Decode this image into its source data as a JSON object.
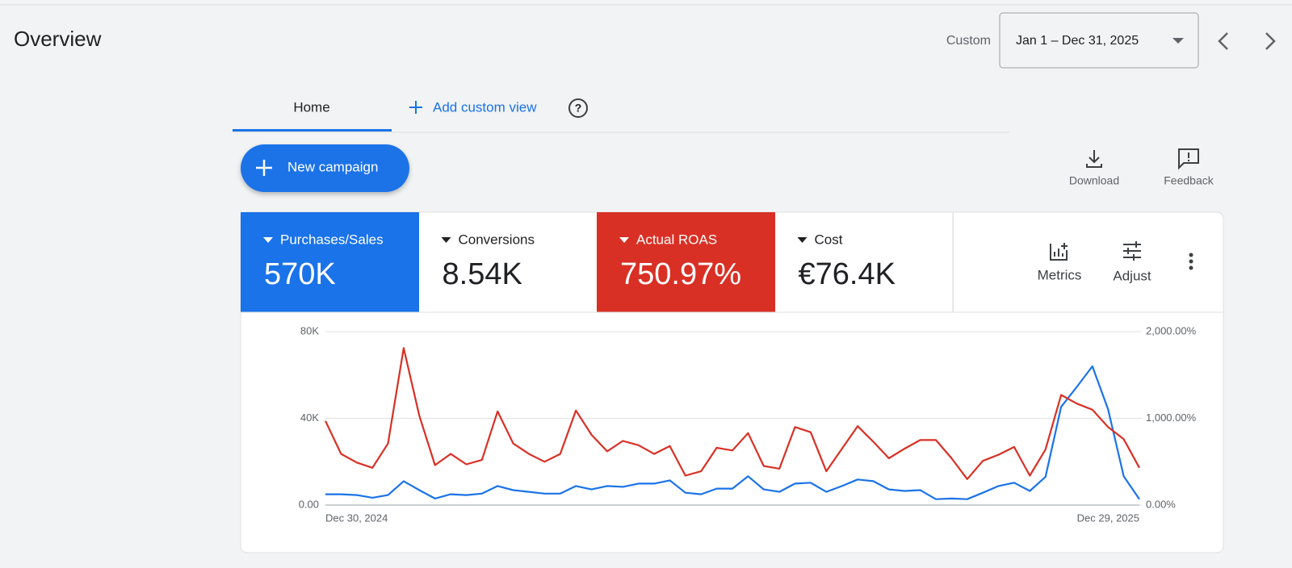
{
  "header": {
    "title": "Overview",
    "range_label": "Custom",
    "date_range": "Jan 1 – Dec 31, 2025"
  },
  "tabs": [
    "Home",
    "Add custom view"
  ],
  "actions": {
    "new_campaign": "New campaign",
    "download": "Download",
    "feedback": "Feedback"
  },
  "metrics": [
    {
      "label": "Purchases/Sales",
      "value": "570K",
      "color": "#1a73e8"
    },
    {
      "label": "Conversions",
      "value": "8.54K"
    },
    {
      "label": "Actual ROAS",
      "value": "750.97%",
      "color": "#d93025"
    },
    {
      "label": "Cost",
      "value": "€76.4K"
    }
  ],
  "tools": [
    "Metrics",
    "Adjust"
  ],
  "chart_data": {
    "type": "line",
    "categories": [
      "Dec 30, 2024",
      null,
      null,
      null,
      null,
      null,
      null,
      null,
      null,
      null,
      null,
      null,
      null,
      null,
      null,
      null,
      null,
      null,
      null,
      null,
      null,
      null,
      null,
      null,
      null,
      null,
      null,
      null,
      null,
      null,
      null,
      null,
      null,
      null,
      null,
      null,
      null,
      null,
      null,
      null,
      null,
      null,
      null,
      null,
      null,
      null,
      null,
      null,
      null,
      null,
      null,
      null,
      "Dec 29, 2025"
    ],
    "series": [
      {
        "color": "#1a73e8",
        "axis": "y",
        "values": [
          5000,
          5000,
          4600,
          3400,
          4600,
          11000,
          6900,
          3000,
          5000,
          4600,
          5300,
          8800,
          6900,
          6100,
          5300,
          5300,
          8800,
          7200,
          8800,
          8400,
          9900,
          9900,
          11400,
          5700,
          5000,
          7600,
          7600,
          13300,
          7200,
          6100,
          9900,
          10300,
          6100,
          8800,
          11800,
          11000,
          7200,
          6500,
          6900,
          2700,
          3000,
          2700,
          5700,
          8800,
          10300,
          6500,
          13000,
          45300,
          54500,
          64000,
          44200,
          13300,
          2700
        ]
      },
      {
        "color": "#d93025",
        "axis": "y2",
        "values": [
          970,
          590,
          490,
          430,
          710,
          1810,
          1030,
          460,
          590,
          470,
          520,
          1080,
          710,
          590,
          500,
          590,
          1090,
          810,
          620,
          740,
          690,
          590,
          680,
          340,
          390,
          660,
          630,
          830,
          450,
          420,
          900,
          840,
          390,
          650,
          910,
          730,
          540,
          650,
          750,
          750,
          540,
          300,
          510,
          580,
          670,
          340,
          640,
          1270,
          1170,
          1100,
          900,
          760,
          430
        ]
      }
    ],
    "ylim": [
      0,
      80000
    ],
    "yticks": [
      {
        "value": 0,
        "label": "0.00"
      },
      {
        "value": 40000,
        "label": "40K"
      },
      {
        "value": 80000,
        "label": "80K"
      }
    ],
    "y2lim": [
      0,
      2000
    ],
    "y2ticks": [
      {
        "value": 0,
        "label": "0.00%"
      },
      {
        "value": 1000,
        "label": "1,000.00%"
      },
      {
        "value": 2000,
        "label": "2,000.00%"
      }
    ],
    "grid": true
  }
}
